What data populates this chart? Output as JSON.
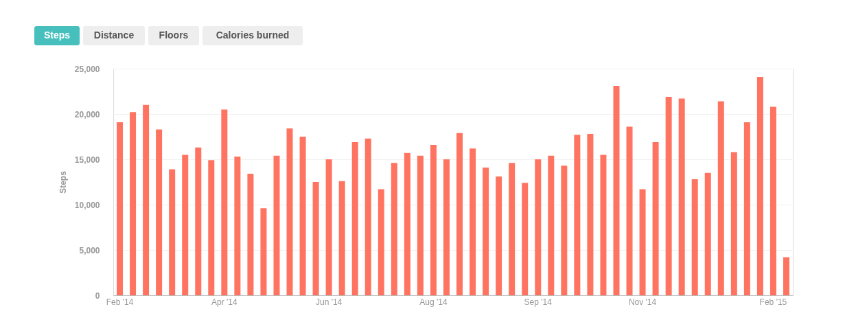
{
  "chart_data": {
    "type": "bar",
    "ylabel": "Steps",
    "annotations": [
      "Steps",
      "Distance",
      "Floors",
      "Calories burned"
    ],
    "categories": [
      "Feb '14",
      null,
      null,
      null,
      null,
      null,
      null,
      null,
      "Apr '14",
      null,
      null,
      null,
      null,
      null,
      null,
      null,
      "Jun '14",
      null,
      null,
      null,
      null,
      null,
      null,
      null,
      "Aug '14",
      null,
      null,
      null,
      null,
      null,
      null,
      null,
      "Sep '14",
      null,
      null,
      null,
      null,
      null,
      null,
      null,
      "Nov '14",
      null,
      null,
      null,
      null,
      null,
      null,
      null,
      null,
      null,
      "Feb '15",
      null
    ],
    "values": [
      19100,
      20200,
      21000,
      18300,
      13900,
      15500,
      16300,
      14900,
      20500,
      15300,
      13400,
      9600,
      15400,
      18400,
      17500,
      12500,
      15000,
      12600,
      16900,
      17300,
      11700,
      14600,
      15700,
      15400,
      16600,
      15000,
      17900,
      16200,
      14100,
      13100,
      14600,
      12400,
      15000,
      15400,
      14300,
      17700,
      17800,
      15500,
      23100,
      18600,
      11700,
      16900,
      21900,
      21700,
      12800,
      13500,
      21400,
      15800,
      19100,
      24100,
      20800,
      4200
    ],
    "color": "#ff7461",
    "ylim": [
      0,
      25000
    ],
    "yticks": [
      0,
      {
        "value": 5000,
        "label": "5,000"
      },
      {
        "value": 10000,
        "label": "10,000"
      },
      {
        "value": 15000,
        "label": "15,000"
      },
      {
        "value": 20000,
        "label": "20,000"
      },
      {
        "value": 25000,
        "label": "25,000"
      }
    ],
    "grid": "y"
  }
}
